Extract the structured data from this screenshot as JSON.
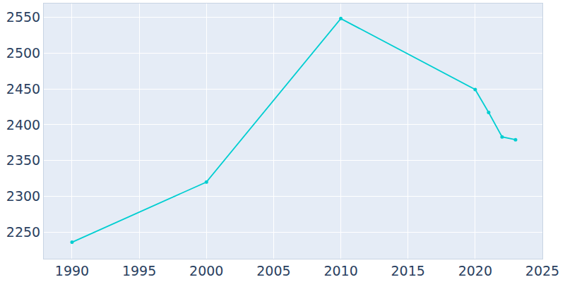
{
  "chart_data": {
    "type": "line",
    "x": [
      1990,
      2000,
      2010,
      2020,
      2021,
      2022,
      2023
    ],
    "values": [
      2236,
      2320,
      2548,
      2449,
      2417,
      2383,
      2379
    ],
    "color": "#00ced1",
    "marker": "circle",
    "xlim": [
      1987.9,
      2025
    ],
    "xticks": [
      1990,
      1995,
      2000,
      2005,
      2010,
      2015,
      2020,
      2025
    ],
    "ylim": [
      2213,
      2569
    ],
    "yticks": [
      2250,
      2300,
      2350,
      2400,
      2450,
      2500,
      2550
    ],
    "grid": true
  }
}
